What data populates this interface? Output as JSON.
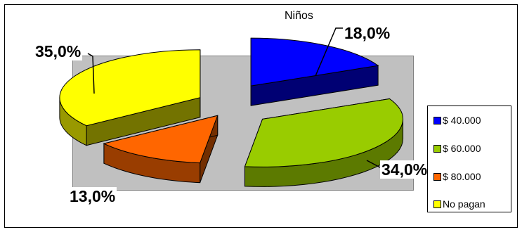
{
  "chart_data": {
    "type": "pie",
    "title": "Niños",
    "categories": [
      "$ 40.000",
      "$ 60.000",
      "$ 80.000",
      "No pagan"
    ],
    "values": [
      18.0,
      34.0,
      13.0,
      35.0
    ],
    "labels": [
      "18,0%",
      "34,0%",
      "13,0%",
      "35,0%"
    ],
    "colors": [
      "#0000ff",
      "#99cc00",
      "#ff6600",
      "#ffff00"
    ],
    "exploded": true,
    "three_d": true,
    "legend_position": "right"
  }
}
